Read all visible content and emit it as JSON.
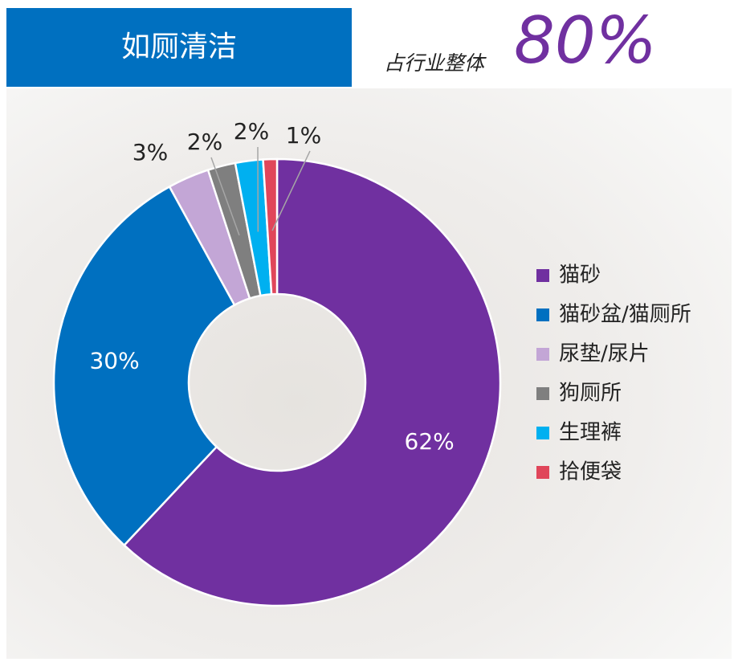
{
  "chart_data": {
    "type": "donut",
    "title": "如厕清洁",
    "subtitle": "占行业整体",
    "highlight": "80%",
    "categories": [
      "猫砂",
      "猫砂盆/猫厕所",
      "尿垫/尿片",
      "狗厕所",
      "生理裤",
      "拾便袋"
    ],
    "values": [
      62,
      30,
      3,
      2,
      2,
      1
    ],
    "value_labels": [
      "62%",
      "30%",
      "3%",
      "2%",
      "2%",
      "1%"
    ],
    "colors": [
      "#7030a0",
      "#0070c0",
      "#c3a6d6",
      "#7f7f7f",
      "#00b0f0",
      "#e0465a"
    ],
    "legend": "right"
  }
}
